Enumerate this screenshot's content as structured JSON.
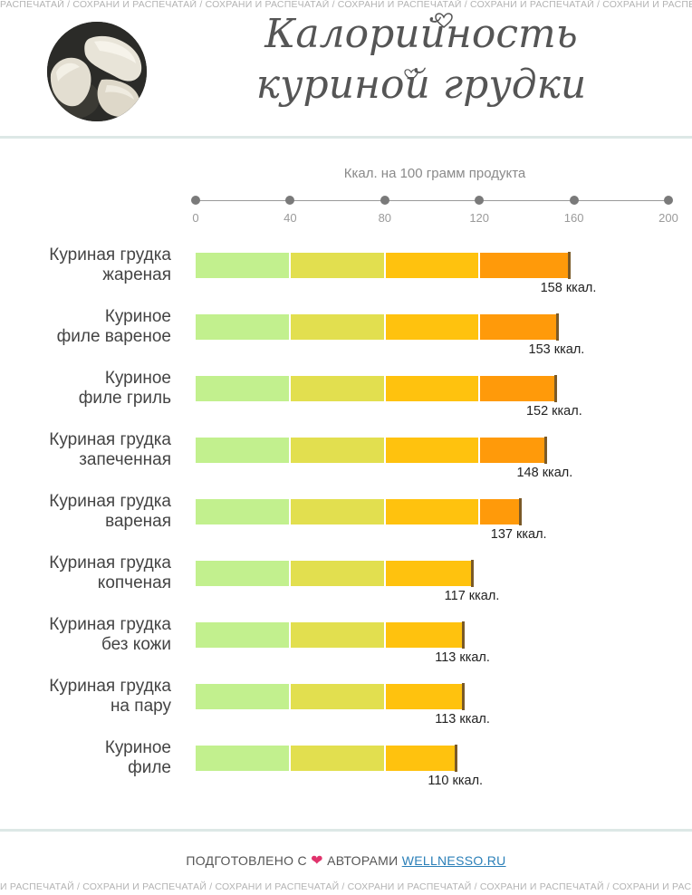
{
  "ticker": {
    "top": "РАСПЕЧАТАЙ / СОХРАНИ И РАСПЕЧАТАЙ / СОХРАНИ И РАСПЕЧАТАЙ / СОХРАНИ И РАСПЕЧАТАЙ / СОХРАНИ И РАСПЕЧАТАЙ / СОХРАНИ И РАСПЕЧАТАЙ / СОХРАНИ И РАСПЕЧАТАЙ / СОХРАНИ И РА",
    "bottom": "И РАСПЕЧАТАЙ / СОХРАНИ И РАСПЕЧАТАЙ / СОХРАНИ И РАСПЕЧАТАЙ / СОХРАНИ И РАСПЕЧАТАЙ / СОХРАНИ И РАСПЕЧАТАЙ / СОХРАНИ И РАСПЕЧАТАЙ / СОХРАНИ И"
  },
  "title": {
    "line1": "Калорийность",
    "line2": "куриной грудки"
  },
  "footer": {
    "prefix": "ПОДГОТОВЛЕНО С",
    "middle": "АВТОРАМИ",
    "link": "WELLNESSO.RU"
  },
  "colors": {
    "seg1": "#c2f08e",
    "seg2": "#e2df4f",
    "seg3": "#ffc20e",
    "seg4": "#ff9a0a",
    "heart": "#e0336c"
  },
  "chart_data": {
    "type": "bar",
    "orientation": "horizontal",
    "title": "Калорийность куриной грудки",
    "xlabel": "Ккал. на 100 грамм продукта",
    "xlim": [
      0,
      200
    ],
    "xticks": [
      "0",
      "40",
      "80",
      "120",
      "160",
      "200"
    ],
    "categories": [
      [
        "Куриная грудка",
        "жареная"
      ],
      [
        "Куриное",
        "филе вареное"
      ],
      [
        "Куриное",
        "филе гриль"
      ],
      [
        "Куриная грудка",
        "запеченная"
      ],
      [
        "Куриная грудка",
        "вареная"
      ],
      [
        "Куриная грудка",
        "копченая"
      ],
      [
        "Куриная грудка",
        "без кожи"
      ],
      [
        "Куриная грудка",
        "на пару"
      ],
      [
        "Куриное",
        "филе"
      ]
    ],
    "values": [
      158,
      153,
      152,
      148,
      137,
      117,
      113,
      113,
      110
    ],
    "value_labels": [
      "158 ккал.",
      "153 ккал.",
      "152 ккал.",
      "148 ккал.",
      "137 ккал.",
      "117 ккал.",
      "113 ккал.",
      "113 ккал.",
      "110 ккал."
    ],
    "color_bands": [
      0,
      40,
      80,
      120,
      200
    ]
  }
}
